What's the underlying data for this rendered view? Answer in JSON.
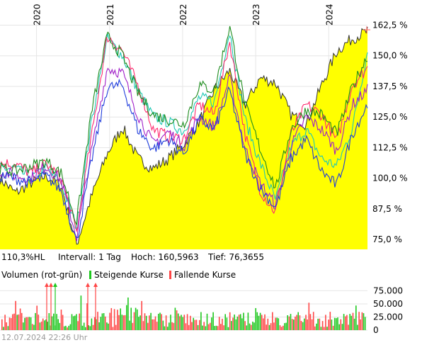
{
  "chart_data": [
    {
      "type": "line",
      "chart_kind": "price-comparison",
      "x_tick_labels": [
        "2020",
        "2021",
        "2022",
        "2023",
        "2024"
      ],
      "x_tick_positions": [
        "2020-01",
        "2021-01",
        "2022-01",
        "2023-01",
        "2024-01"
      ],
      "x_range": [
        "2019-07",
        "2024-07-12"
      ],
      "y_tick_labels": [
        "162,5 %",
        "150,0 %",
        "137,5 %",
        "125,0 %",
        "112,5 %",
        "100,0 %",
        "87,5 %",
        "75,0 %"
      ],
      "y_ticks": [
        162.5,
        150.0,
        137.5,
        125.0,
        112.5,
        100.0,
        87.5,
        75.0
      ],
      "ylim": [
        71,
        169
      ],
      "y_unit": "%",
      "grid": true,
      "colors": {
        "area_fill": "#ffff00",
        "area_line": "#333333",
        "series": [
          "#1ec8b4",
          "#ff2a6e",
          "#a020c8",
          "#1e3cdc",
          "#1e8c1e"
        ],
        "high_marker": "#ff5a5a",
        "grid": "#e6e6e6"
      },
      "series": [
        {
          "values": [
            100,
            94,
            98,
            101,
            97,
            73,
            93,
            110,
            121,
            108,
            104,
            108,
            114,
            123,
            136,
            144,
            130,
            141,
            139,
            126,
            122,
            138,
            152,
            157,
            160
          ]
        },
        {
          "values": [
            104,
            104,
            100,
            104,
            98,
            80,
            124,
            157,
            150,
            136,
            125,
            123,
            119,
            133,
            131,
            160,
            124,
            106,
            91,
            113,
            120,
            108,
            105,
            120,
            152
          ]
        },
        {
          "values": [
            106,
            106,
            102,
            106,
            100,
            78,
            118,
            158,
            152,
            138,
            120,
            117,
            116,
            130,
            126,
            156,
            118,
            95,
            86,
            118,
            130,
            126,
            115,
            138,
            145
          ]
        },
        {
          "values": [
            103,
            101,
            100,
            105,
            99,
            76,
            112,
            145,
            143,
            126,
            114,
            119,
            113,
            125,
            121,
            141,
            112,
            98,
            89,
            113,
            125,
            120,
            111,
            130,
            136
          ]
        },
        {
          "values": [
            101,
            100,
            98,
            101,
            95,
            74,
            108,
            137,
            138,
            120,
            112,
            116,
            110,
            124,
            120,
            136,
            110,
            96,
            88,
            108,
            116,
            103,
            97,
            118,
            130
          ]
        },
        {
          "values": [
            104,
            103,
            105,
            107,
            102,
            82,
            128,
            158,
            150,
            135,
            126,
            124,
            122,
            138,
            136,
            162,
            130,
            112,
            96,
            120,
            128,
            126,
            118,
            137,
            150
          ]
        }
      ],
      "high_marker_value": 160.5963
    },
    {
      "type": "bar",
      "chart_kind": "volume",
      "y_tick_labels": [
        "75.000",
        "50.000",
        "25.000",
        "0"
      ],
      "y_ticks": [
        75000,
        50000,
        25000,
        0
      ],
      "ylim": [
        0,
        85000
      ],
      "colors": {
        "up": "#1ec81e",
        "down": "#ff4646"
      }
    }
  ],
  "info_bar": {
    "current": "110,3%HL",
    "interval": "Intervall: 1 Tag",
    "high": "Hoch: 160,5963",
    "low": "Tief: 76,3655"
  },
  "volume_legend": {
    "title": "Volumen (rot-grün)",
    "up_label": "Steigende Kurse",
    "down_label": "Fallende Kurse"
  },
  "footer": {
    "timestamp": "12.07.2024 22:26 Uhr"
  }
}
